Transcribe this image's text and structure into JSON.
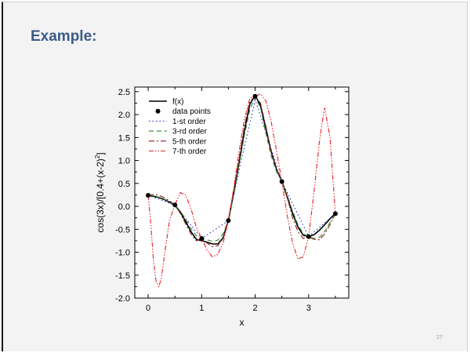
{
  "slide": {
    "title": "Example:",
    "page_number": "27"
  },
  "chart_data": {
    "type": "line",
    "xlabel": "x",
    "ylabel_parts": [
      "cos(3x)/[0.4+(x-2)",
      "2",
      "]"
    ],
    "xlim": [
      -0.25,
      3.75
    ],
    "ylim": [
      -2.0,
      2.6
    ],
    "xticks": [
      0,
      1,
      2,
      3
    ],
    "yticks": [
      -2.0,
      -1.5,
      -1.0,
      -0.5,
      0.0,
      0.5,
      1.0,
      1.5,
      2.0,
      2.5
    ],
    "legend_position": "top-left",
    "series": [
      {
        "name": "f(x)",
        "color": "#000000",
        "dash": "",
        "x": [
          0,
          0.1,
          0.2,
          0.3,
          0.4,
          0.5,
          0.6,
          0.7,
          0.8,
          0.9,
          1.0,
          1.1,
          1.2,
          1.3,
          1.4,
          1.5,
          1.6,
          1.7,
          1.8,
          1.9,
          2.0,
          2.1,
          2.2,
          2.3,
          2.4,
          2.5,
          2.6,
          2.7,
          2.8,
          2.9,
          3.0,
          3.1,
          3.2,
          3.3,
          3.4,
          3.5
        ],
        "y": [
          0.23,
          0.22,
          0.19,
          0.15,
          0.09,
          0.02,
          -0.12,
          -0.33,
          -0.55,
          -0.72,
          -0.75,
          -0.78,
          -0.82,
          -0.82,
          -0.69,
          -0.31,
          0.3,
          0.95,
          1.65,
          2.22,
          2.42,
          2.2,
          1.7,
          1.2,
          0.8,
          0.55,
          0.2,
          -0.15,
          -0.45,
          -0.63,
          -0.66,
          -0.62,
          -0.52,
          -0.4,
          -0.27,
          -0.15
        ]
      },
      {
        "name": "data points",
        "color": "#000000",
        "marker": "circle",
        "x": [
          0,
          0.5,
          1.0,
          1.5,
          2.0,
          2.5,
          3.0,
          3.5
        ],
        "y": [
          0.24,
          0.03,
          -0.7,
          -0.31,
          2.4,
          0.54,
          -0.66,
          -0.16
        ]
      },
      {
        "name": "1-st order",
        "color": "#2a2ad8",
        "dash": "1.5,3",
        "x": [
          0,
          0.5,
          1.0,
          1.5,
          1.75,
          2.0,
          2.25,
          2.5,
          2.75,
          3.0,
          3.25,
          3.5
        ],
        "y": [
          0.24,
          0.03,
          -0.7,
          -0.31,
          1.05,
          2.32,
          1.43,
          0.54,
          -0.06,
          -0.66,
          -0.41,
          -0.16
        ]
      },
      {
        "name": "3-rd order",
        "color": "#2a8a2a",
        "dash": "6,4",
        "x": [
          0,
          0.1,
          0.2,
          0.3,
          0.4,
          0.5,
          0.6,
          0.7,
          0.8,
          0.9,
          1.0,
          1.1,
          1.2,
          1.3,
          1.4,
          1.5,
          1.6,
          1.7,
          1.8,
          1.9,
          2.0,
          2.1,
          2.2,
          2.3,
          2.4,
          2.5,
          2.6,
          2.7,
          2.8,
          2.9,
          3.0,
          3.1,
          3.2,
          3.3,
          3.4,
          3.5
        ],
        "y": [
          0.24,
          0.23,
          0.2,
          0.16,
          0.1,
          0.03,
          -0.1,
          -0.28,
          -0.48,
          -0.64,
          -0.7,
          -0.73,
          -0.76,
          -0.74,
          -0.6,
          -0.31,
          0.25,
          0.9,
          1.55,
          2.1,
          2.38,
          2.15,
          1.6,
          1.1,
          0.75,
          0.54,
          0.25,
          -0.1,
          -0.4,
          -0.6,
          -0.66,
          -0.7,
          -0.68,
          -0.55,
          -0.35,
          -0.16
        ]
      },
      {
        "name": "5-th order",
        "color": "#8b1a1a",
        "dash": "7,3,2,3",
        "x": [
          0,
          0.1,
          0.2,
          0.3,
          0.4,
          0.5,
          0.6,
          0.7,
          0.8,
          0.9,
          1.0,
          1.1,
          1.2,
          1.3,
          1.4,
          1.5,
          1.6,
          1.7,
          1.8,
          1.9,
          2.0,
          2.1,
          2.2,
          2.3,
          2.4,
          2.5,
          2.6,
          2.7,
          2.8,
          2.9,
          3.0,
          3.1,
          3.2,
          3.3,
          3.4,
          3.5
        ],
        "y": [
          0.24,
          0.26,
          0.24,
          0.19,
          0.12,
          0.03,
          -0.15,
          -0.38,
          -0.6,
          -0.75,
          -0.7,
          -0.8,
          -0.88,
          -0.86,
          -0.7,
          -0.31,
          0.35,
          1.05,
          1.75,
          2.28,
          2.4,
          2.25,
          1.75,
          1.2,
          0.8,
          0.54,
          0.2,
          -0.25,
          -0.55,
          -0.7,
          -0.66,
          -0.72,
          -0.73,
          -0.6,
          -0.4,
          -0.16
        ]
      },
      {
        "name": "7-th order",
        "color": "#e8202a",
        "dash": "6,2,1.5,2,1.5,2",
        "x": [
          0,
          0.05,
          0.1,
          0.15,
          0.2,
          0.25,
          0.3,
          0.4,
          0.5,
          0.6,
          0.7,
          0.8,
          0.9,
          1.0,
          1.1,
          1.2,
          1.3,
          1.4,
          1.5,
          1.6,
          1.7,
          1.8,
          1.9,
          2.0,
          2.1,
          2.2,
          2.3,
          2.4,
          2.5,
          2.6,
          2.7,
          2.8,
          2.9,
          3.0,
          3.1,
          3.2,
          3.25,
          3.3,
          3.4,
          3.5
        ],
        "y": [
          0.24,
          -0.4,
          -1.2,
          -1.65,
          -1.75,
          -1.55,
          -1.1,
          -0.3,
          0.03,
          0.3,
          0.25,
          -0.05,
          -0.45,
          -0.7,
          -0.95,
          -1.1,
          -1.05,
          -0.8,
          -0.31,
          0.4,
          1.2,
          1.9,
          2.35,
          2.4,
          2.45,
          2.3,
          1.85,
          1.2,
          0.54,
          -0.2,
          -0.8,
          -1.15,
          -1.1,
          -0.66,
          0.3,
          1.4,
          1.8,
          2.15,
          1.5,
          -0.16
        ]
      }
    ]
  }
}
